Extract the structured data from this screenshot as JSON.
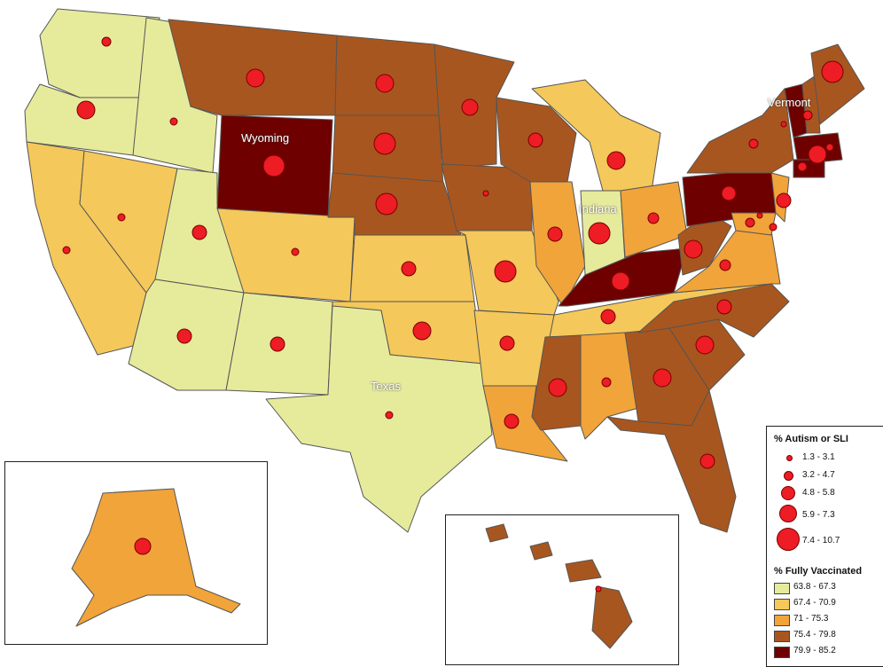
{
  "map": {
    "state_labels": {
      "wyoming": "Wyoming",
      "vermont": "Vermont",
      "indiana": "Indiana",
      "texas": "Texas"
    }
  },
  "legend": {
    "circles_title": "% Autism or SLI",
    "circle_ranges": [
      "1.3 - 3.1",
      "3.2 - 4.7",
      "4.8 - 5.8",
      "5.9 - 7.3",
      "7.4 - 10.7"
    ],
    "fill_title": "% Fully Vaccinated",
    "fill_ranges": [
      "63.8 - 67.3",
      "67.4 - 70.9",
      "71 - 75.3",
      "75.4 - 79.8",
      "79.9 - 85.2"
    ],
    "fill_colors": [
      "#e6eb9c",
      "#f4c85a",
      "#f0a43a",
      "#a8561f",
      "#6e0000"
    ],
    "circle_color": "#ee1c24"
  }
}
